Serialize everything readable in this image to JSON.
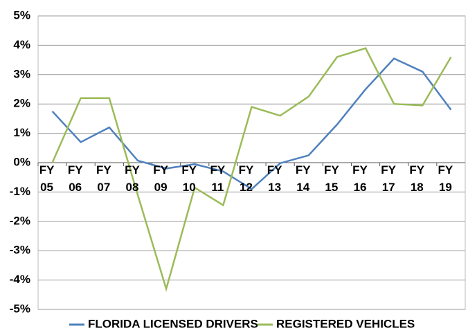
{
  "chart_data": {
    "type": "line",
    "categories": [
      "FY 05",
      "FY 06",
      "FY 07",
      "FY 08",
      "FY 09",
      "FY 10",
      "FY 11",
      "FY 12",
      "FY 13",
      "FY 14",
      "FY 15",
      "FY 16",
      "FY 17",
      "FY 18",
      "FY 19"
    ],
    "series": [
      {
        "name": "FLORIDA LICENSED DRIVERS",
        "color": "#4f81bd",
        "values": [
          1.75,
          0.7,
          1.2,
          0.07,
          -0.2,
          -0.05,
          -0.3,
          -0.9,
          -0.02,
          0.25,
          1.3,
          2.5,
          3.55,
          3.1,
          1.8
        ]
      },
      {
        "name": "REGISTERED VEHICLES",
        "color": "#9bbb59",
        "values": [
          0,
          2.2,
          2.2,
          -1.1,
          -4.3,
          -0.85,
          -1.45,
          1.9,
          1.6,
          2.25,
          3.6,
          3.9,
          2.0,
          1.95,
          3.6
        ]
      }
    ],
    "ylim": [
      -5,
      5
    ],
    "yticks": [
      {
        "value": -5,
        "label": "-5%"
      },
      {
        "value": -4,
        "label": "-4%"
      },
      {
        "value": -3,
        "label": "-3%"
      },
      {
        "value": -2,
        "label": "-2%"
      },
      {
        "value": -1,
        "label": "-1%"
      },
      {
        "value": 0,
        "label": "0%"
      },
      {
        "value": 1,
        "label": "1%"
      },
      {
        "value": 2,
        "label": "2%"
      },
      {
        "value": 3,
        "label": "3%"
      },
      {
        "value": 4,
        "label": "4%"
      },
      {
        "value": 5,
        "label": "5%"
      }
    ],
    "grid": true
  }
}
